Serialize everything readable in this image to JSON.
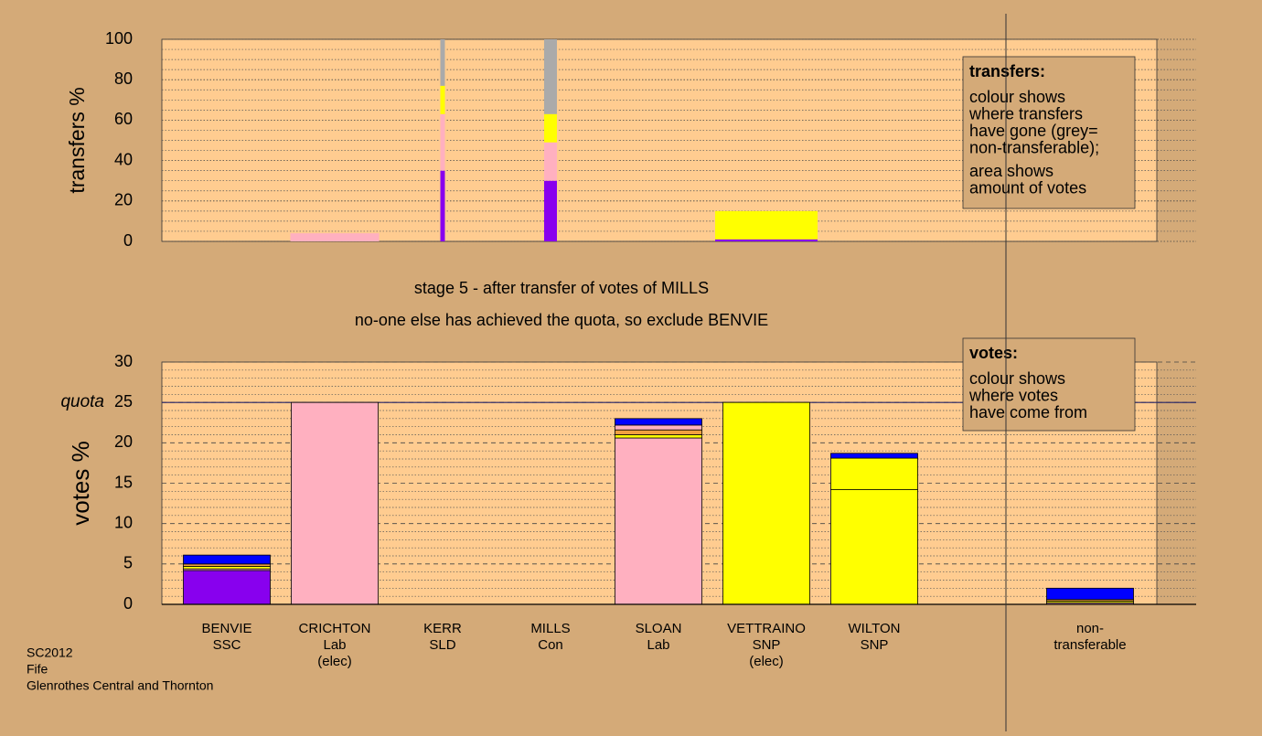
{
  "chart_data": [
    {
      "type": "bar",
      "stacked": true,
      "ylabel": "transfers %",
      "categories": [
        "BENVIE",
        "CRICHTON",
        "KERR",
        "MILLS",
        "SLOAN",
        "VETTRAINO",
        "WILTON",
        null,
        "non-transferable"
      ],
      "widths": [
        0,
        97,
        5,
        14,
        0,
        112,
        0,
        0,
        0
      ],
      "ylim": [
        0,
        100
      ],
      "yticks": [
        0,
        20,
        40,
        60,
        80,
        100
      ],
      "yticks_minor": [
        5,
        10,
        15,
        25,
        30,
        35,
        45,
        50,
        55,
        65,
        70,
        75,
        85,
        90,
        95
      ],
      "series": [
        {
          "color": "#8800ee",
          "values": [
            0,
            0,
            35,
            30,
            0,
            1,
            0,
            0,
            0
          ]
        },
        {
          "color": "#ffb0c0",
          "values": [
            0,
            4,
            28,
            19,
            0,
            0,
            0,
            0,
            0
          ]
        },
        {
          "color": "#ffff00",
          "values": [
            0,
            0,
            14,
            14,
            0,
            14,
            0,
            0,
            0
          ]
        },
        {
          "color": "#aaaaaa",
          "values": [
            0,
            0,
            23,
            37,
            0,
            0,
            0,
            0,
            0
          ]
        }
      ],
      "note_title": "transfers:",
      "note_lines": [
        "colour shows",
        "where transfers",
        "have gone (grey=",
        "non-transferable);",
        "area shows",
        "amount of votes"
      ]
    },
    {
      "type": "bar",
      "stacked": true,
      "ylabel": "votes %",
      "title_lines": [
        "stage 5 - after transfer of votes of MILLS",
        "no-one else has achieved the quota, so exclude BENVIE"
      ],
      "categories": [
        [
          "BENVIE",
          "SSC"
        ],
        [
          "CRICHTON",
          "Lab",
          "(elec)"
        ],
        [
          "KERR",
          "SLD"
        ],
        [
          "MILLS",
          "Con"
        ],
        [
          "SLOAN",
          "Lab"
        ],
        [
          "VETTRAINO",
          "SNP",
          "(elec)"
        ],
        [
          "WILTON",
          "SNP"
        ],
        null,
        [
          "non-",
          "transferable"
        ]
      ],
      "ylim": [
        0,
        30
      ],
      "yticks": [
        0,
        5,
        10,
        15,
        20,
        25,
        30
      ],
      "yticks_minor": [
        1,
        2,
        3,
        4,
        6,
        7,
        8,
        9,
        11,
        12,
        13,
        14,
        16,
        17,
        18,
        19,
        21,
        22,
        23,
        24,
        26,
        27,
        28,
        29
      ],
      "quota": 25,
      "quota_label": "quota",
      "series": [
        {
          "color": "#8800ee",
          "values": [
            4.2,
            0,
            0,
            0,
            0,
            0,
            0,
            0,
            0
          ]
        },
        {
          "color": "#ffb0c0",
          "values": [
            0.2,
            25,
            0,
            0,
            20.6,
            0,
            0,
            0,
            0.2
          ]
        },
        {
          "color": "#ffff00",
          "values": [
            0.3,
            0,
            0,
            0,
            0.4,
            25,
            14.2,
            0,
            0.2
          ]
        },
        {
          "color": "#ffff00",
          "values": [
            0,
            0,
            0,
            0,
            0,
            0,
            3.9,
            0,
            0
          ]
        },
        {
          "color": "#f0a040",
          "values": [
            0.3,
            0,
            0,
            0,
            0.6,
            0,
            0,
            0,
            0.2
          ]
        },
        {
          "color": "#ffb0c0",
          "values": [
            0,
            0,
            0,
            0,
            0.6,
            0,
            0,
            0,
            0
          ]
        },
        {
          "color": "#0000ff",
          "values": [
            1.1,
            0,
            0,
            0,
            0.8,
            0,
            0.6,
            0,
            1.4
          ]
        }
      ],
      "note_title": "votes:",
      "note_lines": [
        "colour shows",
        "where votes",
        "have come from"
      ]
    }
  ],
  "footer": [
    "SC2012",
    "Fife",
    "Glenrothes Central and Thornton"
  ]
}
